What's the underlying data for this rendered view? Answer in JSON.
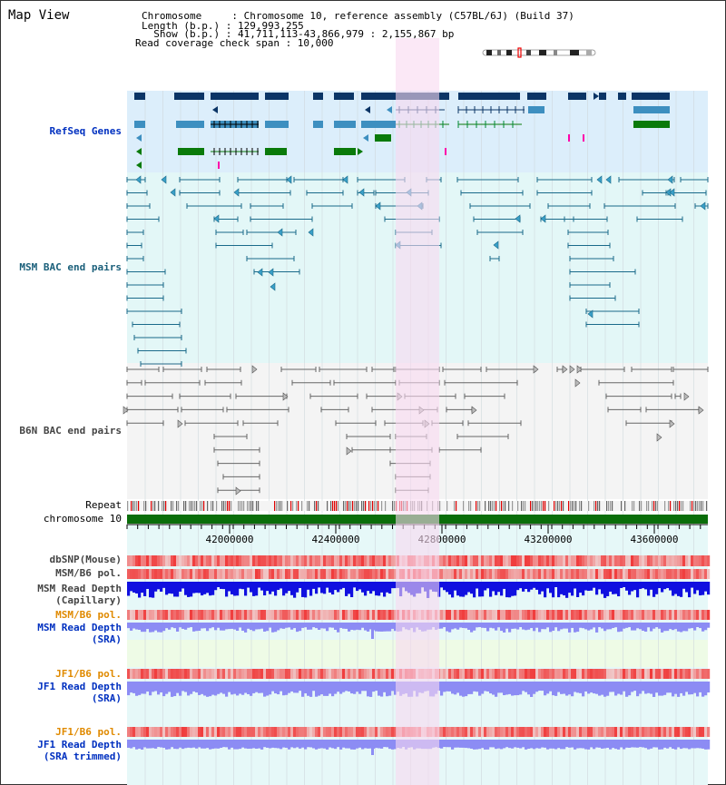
{
  "header": {
    "title": "Map View",
    "chromosome_line": "Chromosome     : Chromosome 10, reference assembly (C57BL/6J) (Build 37)",
    "length_line": "Length (b.p.) : 129,993,255",
    "show_line": "  Show (b.p.) : 41,711,113-43,866,979 : 2,155,867 bp",
    "coverage_line": "Read coverage check span : 10,000"
  },
  "tracks": {
    "refseq": "RefSeq Genes",
    "msm_bac": "MSM BAC end pairs",
    "b6n_bac": "B6N BAC end pairs",
    "repeat": "Repeat",
    "chromosome": "chromosome 10",
    "dbsnp": "dbSNP(Mouse)",
    "msm_pol1": "MSM/B6 pol.",
    "msm_depth_cap_1": "MSM Read Depth",
    "msm_depth_cap_2": "(Capillary)",
    "msm_pol2": "MSM/B6 pol.",
    "msm_depth_sra_1": "MSM Read Depth",
    "msm_depth_sra_2": "(SRA)",
    "jf1_pol1": "JF1/B6 pol.",
    "jf1_depth_1": "JF1 Read Depth",
    "jf1_depth_2": "(SRA)",
    "jf1_pol2": "JF1/B6 pol.",
    "jf1_trim_1": "JF1 Read Depth",
    "jf1_trim_2": "(SRA trimmed)"
  },
  "axis": {
    "ticks": [
      "42000000",
      "42400000",
      "42800000",
      "43200000",
      "43600000"
    ]
  },
  "colors": {
    "refseq_bg": "#dceefb",
    "msm_bg": "#e3f7f7",
    "b6n_bg": "#f4f4f4",
    "highlight": "#f8d8f0",
    "refseq_dark": "#0b3566",
    "refseq_mid": "#3d8fc0",
    "refseq_green": "#0a7a0a",
    "msm_line": "#1a6a8a",
    "b6n_line": "#555555",
    "depth_blue": "#1010e0",
    "depth_light": "#8c8cf4",
    "chrom_green": "#0a6e0a"
  }
}
